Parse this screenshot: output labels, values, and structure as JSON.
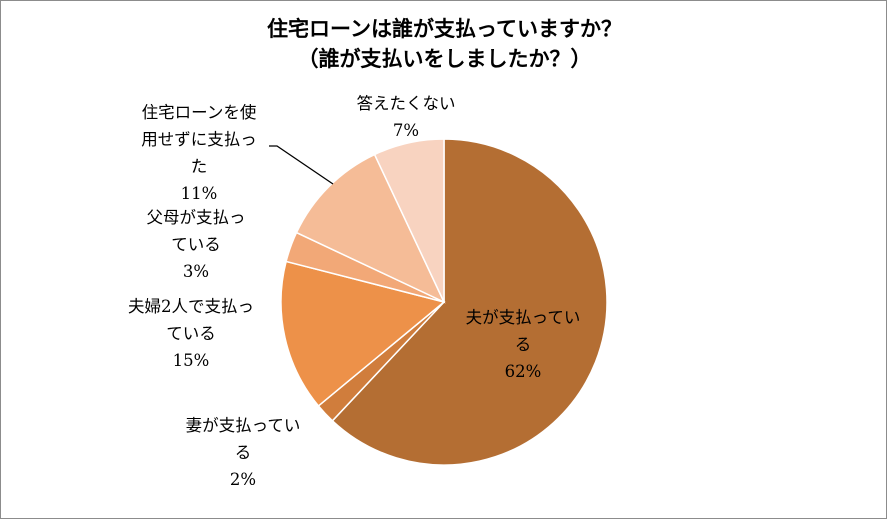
{
  "chart_data": {
    "type": "pie",
    "title": "住宅ローンは誰が支払っていますか？",
    "subtitle": "（誰が支払いをしましたか？）",
    "slices": [
      {
        "label_lines": [
          "夫が支払ってい",
          "る"
        ],
        "pct_label": "62%",
        "value": 62,
        "color": "#b46e33"
      },
      {
        "label_lines": [
          "妻が支払ってい",
          "る"
        ],
        "pct_label": "2%",
        "value": 2,
        "color": "#d07d3c"
      },
      {
        "label_lines": [
          "夫婦2人で支払っ",
          "ている"
        ],
        "pct_label": "15%",
        "value": 15,
        "color": "#ed9149"
      },
      {
        "label_lines": [
          "父母が支払っ",
          "ている"
        ],
        "pct_label": "3%",
        "value": 3,
        "color": "#f2a877"
      },
      {
        "label_lines": [
          "住宅ローンを使",
          "用せずに支払っ",
          "た"
        ],
        "pct_label": "11%",
        "value": 11,
        "color": "#f5bc97"
      },
      {
        "label_lines": [
          "答えたくない"
        ],
        "pct_label": "7%",
        "value": 7,
        "color": "#f8d3c0"
      }
    ]
  }
}
